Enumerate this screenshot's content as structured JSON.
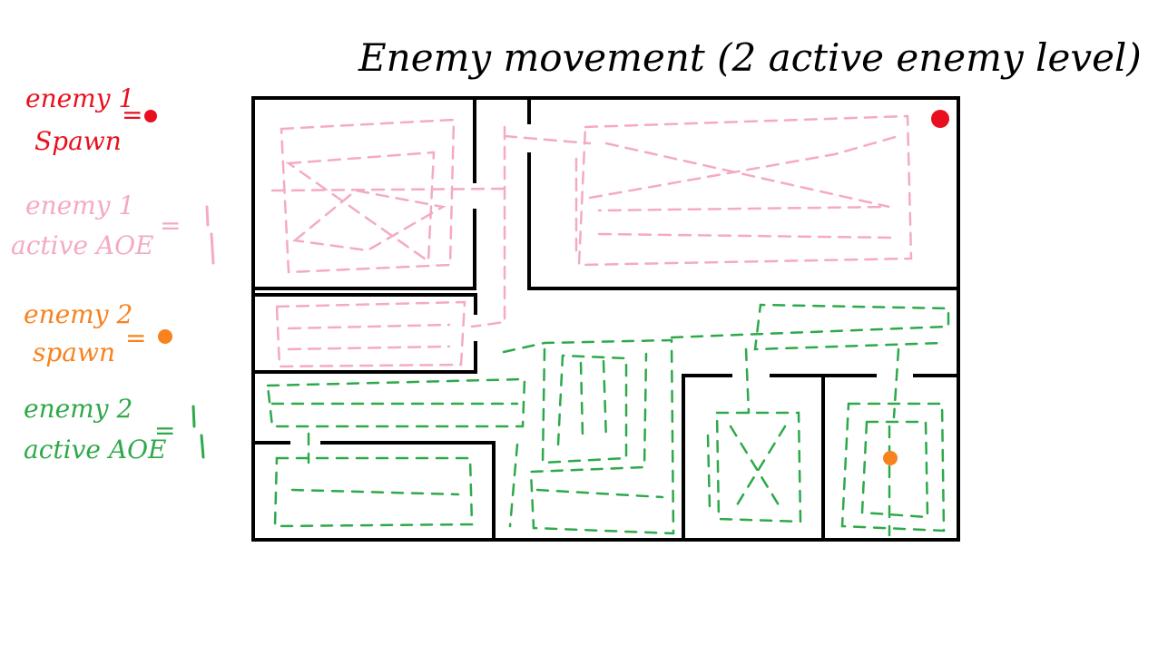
{
  "title": "Enemy movement (2 active enemy level)",
  "legend": {
    "enemy1_spawn": {
      "line1": "enemy 1",
      "line2": "Spawn",
      "symbol": "=",
      "color": "#e8101e"
    },
    "enemy1_aoe": {
      "line1": "enemy 1",
      "line2": "active AOE",
      "symbol": "=",
      "color": "#f4aac4"
    },
    "enemy2_spawn": {
      "line1": "enemy 2",
      "line2": "spawn",
      "symbol": "=",
      "color": "#f7821e"
    },
    "enemy2_aoe": {
      "line1": "enemy 2",
      "line2": "active AOE",
      "symbol": "=",
      "color": "#2da94a"
    }
  },
  "colors": {
    "wall": "#000000",
    "enemy1": "#e8101e",
    "enemy1_path": "#f4aac4",
    "enemy2": "#f7821e",
    "enemy2_path": "#2da94a"
  }
}
